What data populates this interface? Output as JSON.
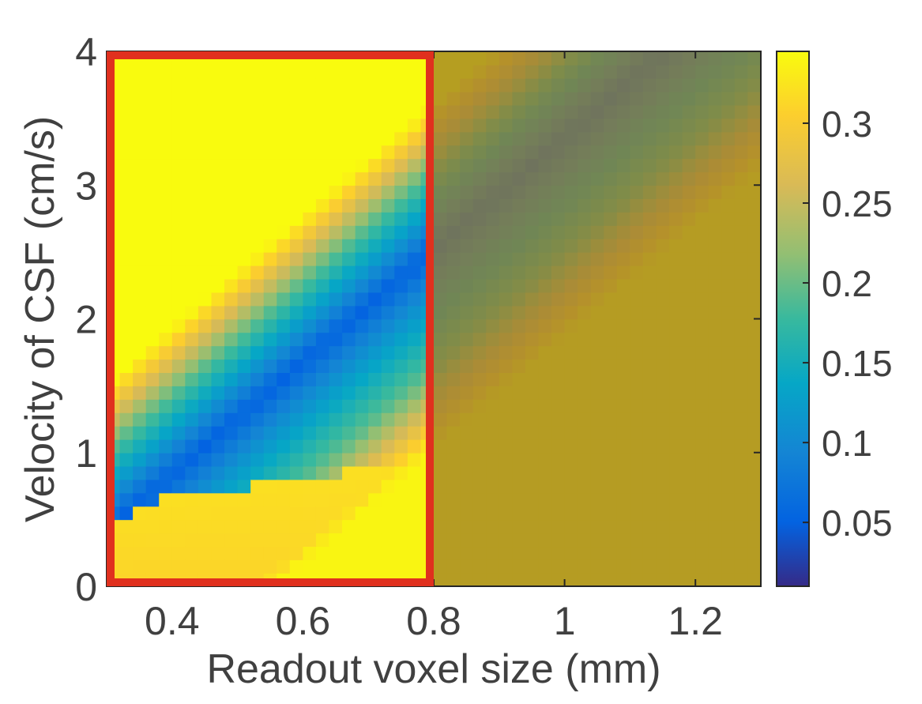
{
  "chart_data": {
    "type": "heatmap",
    "title": "",
    "xlabel": "Readout voxel size (mm)",
    "ylabel": "Velocity of CSF (cm/s)",
    "xlim": [
      0.3,
      1.3
    ],
    "ylim": [
      0,
      4
    ],
    "x_ticks": [
      {
        "value": 0.4,
        "label": "0.4"
      },
      {
        "value": 0.6,
        "label": "0.6"
      },
      {
        "value": 0.8,
        "label": "0.8"
      },
      {
        "value": 1.0,
        "label": "1"
      },
      {
        "value": 1.2,
        "label": "1.2"
      }
    ],
    "y_ticks": [
      {
        "value": 0,
        "label": "0"
      },
      {
        "value": 1,
        "label": "1"
      },
      {
        "value": 2,
        "label": "2"
      },
      {
        "value": 3,
        "label": "3"
      },
      {
        "value": 4,
        "label": "4"
      }
    ],
    "colorbar": {
      "range": [
        0.01,
        0.345
      ],
      "colormap": "parula",
      "ticks": [
        {
          "value": 0.05,
          "label": "0.05"
        },
        {
          "value": 0.1,
          "label": "0.1"
        },
        {
          "value": 0.15,
          "label": "0.15"
        },
        {
          "value": 0.2,
          "label": "0.2"
        },
        {
          "value": 0.25,
          "label": "0.25"
        },
        {
          "value": 0.3,
          "label": "0.3"
        }
      ]
    },
    "highlight_box": {
      "x_range": [
        0.3,
        0.8
      ],
      "y_range": [
        0,
        4
      ],
      "color": "#e0301e"
    },
    "dimmed_region": {
      "x_range": [
        0.8,
        1.3
      ],
      "overlay_color": "#9a7a2a"
    },
    "grid": false
  }
}
